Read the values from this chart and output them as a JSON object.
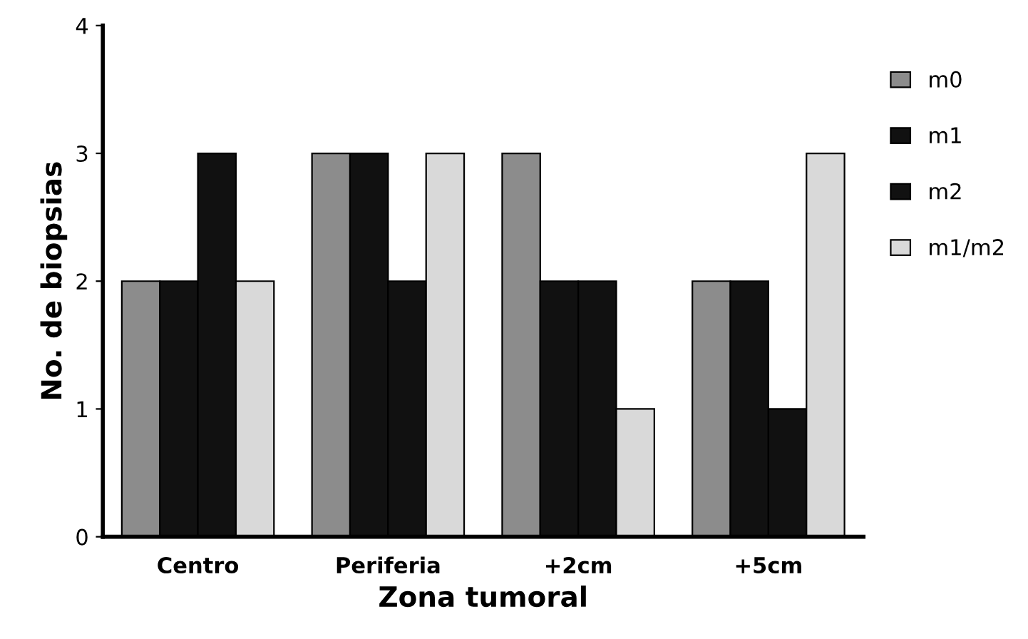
{
  "chart_data": {
    "type": "bar",
    "xlabel": "Zona tumoral",
    "ylabel": "No. de biopsias",
    "categories": [
      "Centro",
      "Periferia",
      "+2cm",
      "+5cm"
    ],
    "series": [
      {
        "name": "m0",
        "color": "#8c8c8c",
        "values": [
          2,
          3,
          3,
          2
        ]
      },
      {
        "name": "m1",
        "color": "#111111",
        "values": [
          2,
          3,
          2,
          2
        ]
      },
      {
        "name": "m2",
        "color": "#111111",
        "values": [
          3,
          2,
          2,
          1
        ]
      },
      {
        "name": "m1/m2",
        "color": "#d9d9d9",
        "values": [
          2,
          3,
          1,
          3
        ]
      }
    ],
    "ylim": [
      0,
      4
    ],
    "yticks": [
      0,
      1,
      2,
      3,
      4
    ],
    "grid": false,
    "legend": "right"
  }
}
